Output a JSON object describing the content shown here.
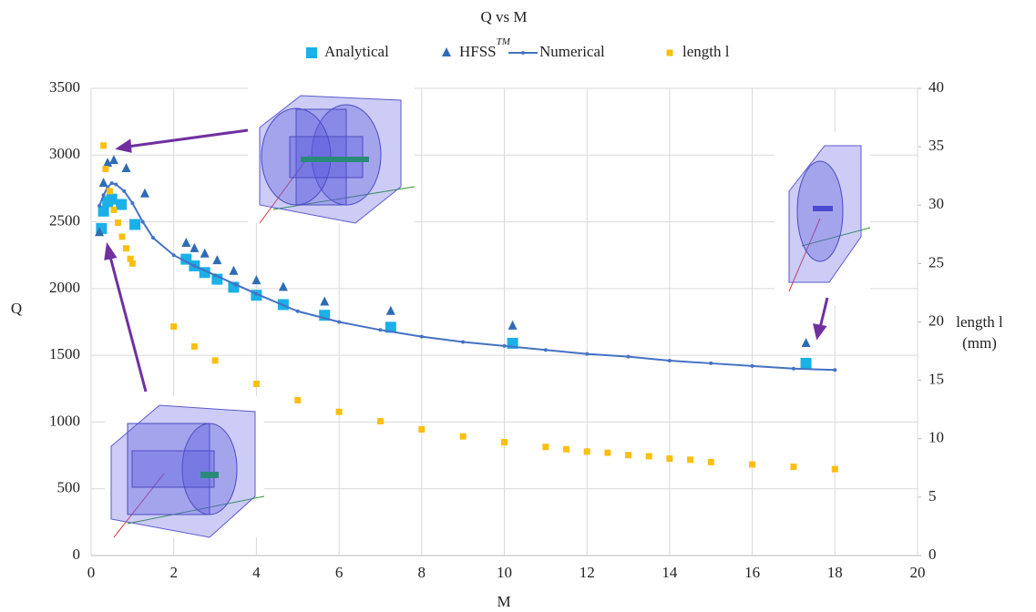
{
  "chart_data": {
    "type": "scatter",
    "title": "Q vs M",
    "x_label": "M",
    "y_label": "Q",
    "y2_label": [
      "length l",
      "(mm)"
    ],
    "xlim": [
      0,
      20
    ],
    "xticks": [
      0,
      2,
      4,
      6,
      8,
      10,
      12,
      14,
      16,
      18,
      20
    ],
    "ylim": [
      0,
      3500
    ],
    "yticks": [
      0,
      500,
      1000,
      1500,
      2000,
      2500,
      3000,
      3500
    ],
    "y2lim": [
      0,
      40
    ],
    "y2ticks": [
      0,
      5,
      10,
      15,
      20,
      25,
      30,
      35,
      40
    ],
    "grid": true,
    "legend": "top",
    "series": [
      {
        "name": "Analytical",
        "marker": "square",
        "color": "#1ab0e8",
        "x": [
          0.25,
          0.3,
          0.4,
          0.5,
          0.73,
          1.06,
          2.3,
          2.5,
          2.75,
          3.05,
          3.45,
          4,
          4.65,
          5.65,
          7.25,
          10.2,
          17.3
        ],
        "values": [
          2450,
          2580,
          2650,
          2670,
          2630,
          2480,
          2220,
          2170,
          2120,
          2070,
          2010,
          1950,
          1880,
          1800,
          1710,
          1590,
          1440
        ]
      },
      {
        "name": "HFSS",
        "superscript": "TM",
        "marker": "triangle",
        "color": "#2e6cb5",
        "x": [
          0.2,
          0.3,
          0.4,
          0.55,
          0.85,
          1.3,
          2.3,
          2.5,
          2.75,
          3.05,
          3.45,
          4,
          4.65,
          5.65,
          7.25,
          10.2,
          17.3
        ],
        "values": [
          2420,
          2790,
          2940,
          2960,
          2900,
          2710,
          2340,
          2300,
          2260,
          2210,
          2130,
          2060,
          2010,
          1900,
          1830,
          1720,
          1590
        ]
      },
      {
        "name": "Numerical",
        "marker": "line",
        "color": "#4472c4",
        "x": [
          0.2,
          0.3,
          0.4,
          0.5,
          0.6,
          0.8,
          1,
          1.25,
          1.5,
          2,
          2.5,
          3,
          3.5,
          4,
          5,
          6,
          7,
          8,
          9,
          10,
          11,
          12,
          13,
          14,
          15,
          16,
          17,
          18
        ],
        "values": [
          2620,
          2700,
          2760,
          2790,
          2780,
          2730,
          2640,
          2500,
          2380,
          2250,
          2170,
          2100,
          2030,
          1960,
          1830,
          1750,
          1690,
          1640,
          1600,
          1570,
          1540,
          1510,
          1490,
          1460,
          1440,
          1420,
          1400,
          1390
        ]
      },
      {
        "name": "length l",
        "marker": "smallsquare",
        "color": "#fbbf10",
        "axis": "y2",
        "x": [
          0.3,
          0.35,
          0.45,
          0.55,
          0.65,
          0.75,
          0.85,
          0.95,
          1,
          2,
          2.5,
          3,
          4,
          5,
          6,
          7,
          8,
          9,
          10,
          11,
          11.5,
          12,
          12.5,
          13,
          13.5,
          14,
          14.5,
          15,
          16,
          17,
          18
        ],
        "values": [
          35.1,
          33.1,
          31.2,
          29.6,
          28.5,
          27.3,
          26.3,
          25.4,
          25.0,
          19.6,
          17.9,
          16.7,
          14.7,
          13.3,
          12.3,
          11.5,
          10.8,
          10.2,
          9.7,
          9.3,
          9.1,
          8.9,
          8.8,
          8.6,
          8.5,
          8.3,
          8.2,
          8.0,
          7.8,
          7.6,
          7.4
        ]
      }
    ]
  }
}
